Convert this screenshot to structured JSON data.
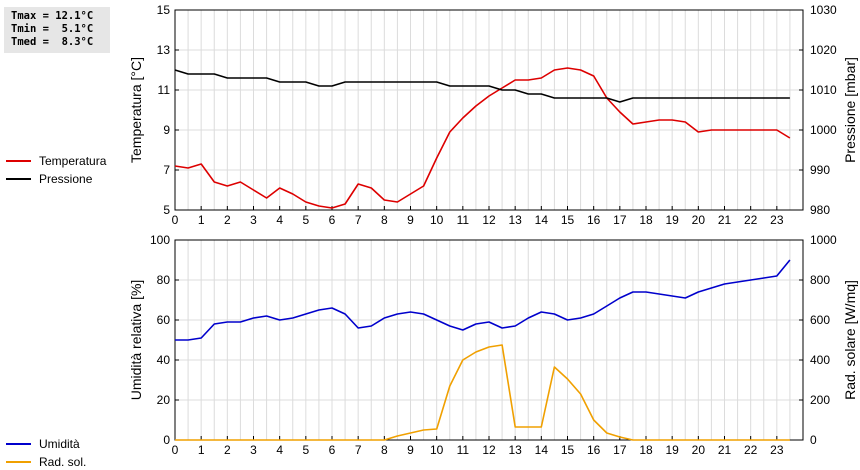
{
  "stats": {
    "tmax": "Tmax = 12.1°C",
    "tmin": "Tmin =  5.1°C",
    "tmed": "Tmed =  8.3°C"
  },
  "legend": {
    "top": [
      {
        "label": "Temperatura",
        "color": "#dd0000"
      },
      {
        "label": "Pressione",
        "color": "#000000"
      }
    ],
    "bottom": [
      {
        "label": "Umidità",
        "color": "#0000cc"
      },
      {
        "label": "Rad. sol.",
        "color": "#f0a000"
      }
    ]
  },
  "chart_data": [
    {
      "type": "line",
      "xlabel": "",
      "xlim": [
        0,
        24
      ],
      "x_ticks": [
        "0",
        "1",
        "2",
        "3",
        "4",
        "5",
        "6",
        "7",
        "8",
        "9",
        "10",
        "11",
        "12",
        "13",
        "14",
        "15",
        "16",
        "17",
        "18",
        "19",
        "20",
        "21",
        "22",
        "23"
      ],
      "ylabel": "Temperatura [°C]",
      "ylim": [
        5,
        15
      ],
      "y_ticks": [
        "5",
        "7",
        "9",
        "11",
        "13",
        "15"
      ],
      "y2label": "Pressione [mbar]",
      "y2lim": [
        980,
        1030
      ],
      "y2_ticks": [
        "980",
        "990",
        "1000",
        "1010",
        "1020",
        "1030"
      ],
      "grid": true,
      "series": [
        {
          "name": "Temperatura",
          "axis": "left",
          "color": "#dd0000",
          "x": [
            0,
            0.5,
            1,
            1.5,
            2,
            2.5,
            3,
            3.5,
            4,
            4.5,
            5,
            5.5,
            6,
            6.5,
            7,
            7.5,
            8,
            8.5,
            9,
            9.5,
            10,
            10.5,
            11,
            11.5,
            12,
            12.5,
            13,
            13.5,
            14,
            14.5,
            15,
            15.5,
            16,
            16.5,
            17,
            17.5,
            18,
            18.5,
            19,
            19.5,
            20,
            20.5,
            21,
            21.5,
            22,
            22.5,
            23,
            23.5
          ],
          "values": [
            7.2,
            7.1,
            7.3,
            6.4,
            6.2,
            6.4,
            6.0,
            5.6,
            6.1,
            5.8,
            5.4,
            5.2,
            5.1,
            5.3,
            6.3,
            6.1,
            5.5,
            5.4,
            5.8,
            6.2,
            7.6,
            8.9,
            9.6,
            10.2,
            10.7,
            11.1,
            11.5,
            11.5,
            11.6,
            12.0,
            12.1,
            12.0,
            11.7,
            10.6,
            9.9,
            9.3,
            9.4,
            9.5,
            9.5,
            9.4,
            8.9,
            9.0,
            9.0,
            9.0,
            9.0,
            9.0,
            9.0,
            8.6
          ]
        },
        {
          "name": "Pressione",
          "axis": "right",
          "color": "#000000",
          "x": [
            0,
            0.5,
            1,
            1.5,
            2,
            2.5,
            3,
            3.5,
            4,
            4.5,
            5,
            5.5,
            6,
            6.5,
            7,
            7.5,
            8,
            8.5,
            9,
            9.5,
            10,
            10.5,
            11,
            11.5,
            12,
            12.5,
            13,
            13.5,
            14,
            14.5,
            15,
            15.5,
            16,
            16.5,
            17,
            17.5,
            18,
            18.5,
            19,
            19.5,
            20,
            20.5,
            21,
            21.5,
            22,
            22.5,
            23,
            23.5
          ],
          "values": [
            1015,
            1014,
            1014,
            1014,
            1013,
            1013,
            1013,
            1013,
            1012,
            1012,
            1012,
            1011,
            1011,
            1012,
            1012,
            1012,
            1012,
            1012,
            1012,
            1012,
            1012,
            1011,
            1011,
            1011,
            1011,
            1010,
            1010,
            1009,
            1009,
            1008,
            1008,
            1008,
            1008,
            1008,
            1007,
            1008,
            1008,
            1008,
            1008,
            1008,
            1008,
            1008,
            1008,
            1008,
            1008,
            1008,
            1008,
            1008
          ]
        }
      ]
    },
    {
      "type": "line",
      "xlabel": "",
      "xlim": [
        0,
        24
      ],
      "x_ticks": [
        "0",
        "1",
        "2",
        "3",
        "4",
        "5",
        "6",
        "7",
        "8",
        "9",
        "10",
        "11",
        "12",
        "13",
        "14",
        "15",
        "16",
        "17",
        "18",
        "19",
        "20",
        "21",
        "22",
        "23"
      ],
      "ylabel": "Umidità relativa [%]",
      "ylim": [
        0,
        100
      ],
      "y_ticks": [
        "0",
        "20",
        "40",
        "60",
        "80",
        "100"
      ],
      "y2label": "Rad. solare [W/mq]",
      "y2lim": [
        0,
        1000
      ],
      "y2_ticks": [
        "0",
        "200",
        "400",
        "600",
        "800",
        "1000"
      ],
      "grid": true,
      "series": [
        {
          "name": "Umidità",
          "axis": "left",
          "color": "#0000cc",
          "x": [
            0,
            0.5,
            1,
            1.5,
            2,
            2.5,
            3,
            3.5,
            4,
            4.5,
            5,
            5.5,
            6,
            6.5,
            7,
            7.5,
            8,
            8.5,
            9,
            9.5,
            10,
            10.5,
            11,
            11.5,
            12,
            12.5,
            13,
            13.5,
            14,
            14.5,
            15,
            15.5,
            16,
            16.5,
            17,
            17.5,
            18,
            18.5,
            19,
            19.5,
            20,
            20.5,
            21,
            21.5,
            22,
            22.5,
            23,
            23.5
          ],
          "values": [
            50,
            50,
            51,
            58,
            59,
            59,
            61,
            62,
            60,
            61,
            63,
            65,
            66,
            63,
            56,
            57,
            61,
            63,
            64,
            63,
            60,
            57,
            55,
            58,
            59,
            56,
            57,
            61,
            64,
            63,
            60,
            61,
            63,
            67,
            71,
            74,
            74,
            73,
            72,
            71,
            74,
            76,
            78,
            79,
            80,
            81,
            82,
            90
          ]
        },
        {
          "name": "Rad. sol.",
          "axis": "right",
          "color": "#f0a000",
          "x": [
            0,
            1,
            2,
            3,
            4,
            5,
            6,
            7,
            8,
            8.5,
            9,
            9.5,
            10,
            10.5,
            11,
            11.5,
            12,
            12.5,
            13,
            13.5,
            14,
            14.5,
            15,
            15.5,
            16,
            16.5,
            17,
            17.5,
            18,
            19,
            20,
            21,
            22,
            23,
            23.5
          ],
          "values": [
            0,
            0,
            0,
            0,
            0,
            0,
            0,
            0,
            0,
            20,
            35,
            50,
            55,
            270,
            400,
            440,
            465,
            475,
            65,
            65,
            65,
            365,
            305,
            230,
            100,
            35,
            15,
            0,
            0,
            0,
            0,
            0,
            0,
            0,
            0
          ]
        }
      ]
    }
  ]
}
